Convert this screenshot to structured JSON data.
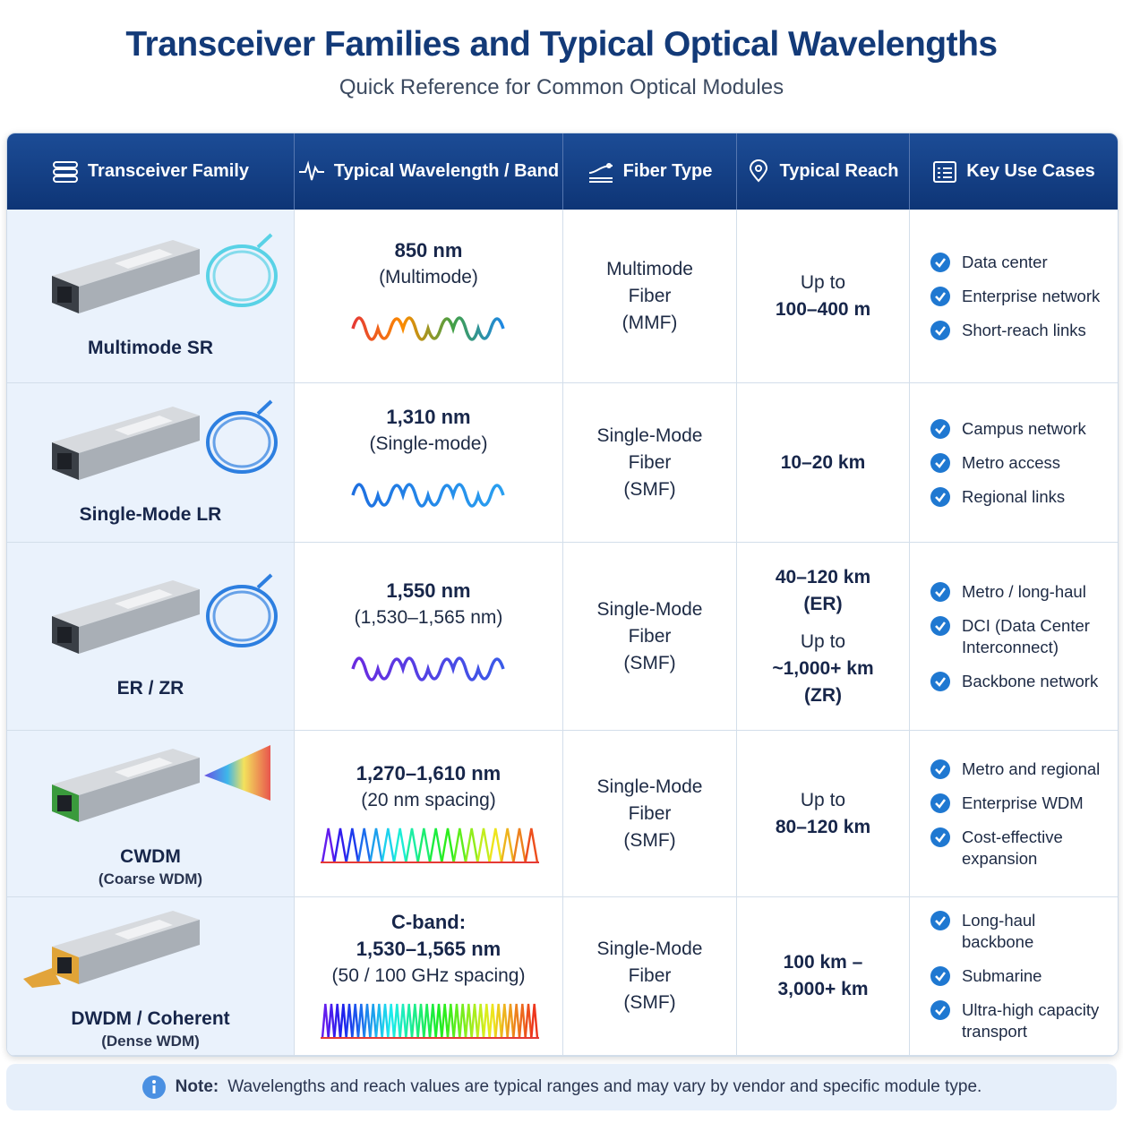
{
  "header": {
    "title": "Transceiver Families and Typical Optical Wavelengths",
    "subtitle": "Quick Reference for Common Optical Modules"
  },
  "table": {
    "columns": [
      "Transceiver Family",
      "Typical Wavelength / Band",
      "Fiber Type",
      "Typical Reach",
      "Key Use Cases"
    ],
    "rows": [
      {
        "family": {
          "name": "Multimode SR"
        },
        "wavelength": {
          "band": "850 nm",
          "detail": "(Multimode)"
        },
        "fiber": [
          "Multimode",
          "Fiber",
          "(MMF)"
        ],
        "reach": [
          {
            "prefix": "Up to",
            "value": "100–400 m"
          }
        ],
        "use_cases": [
          "Data center",
          "Enterprise network",
          "Short-reach links"
        ]
      },
      {
        "family": {
          "name": "Single-Mode LR"
        },
        "wavelength": {
          "band": "1,310 nm",
          "detail": "(Single-mode)"
        },
        "fiber": [
          "Single-Mode",
          "Fiber",
          "(SMF)"
        ],
        "reach": [
          {
            "value": "10–20 km"
          }
        ],
        "use_cases": [
          "Campus network",
          "Metro access",
          "Regional links"
        ]
      },
      {
        "family": {
          "name": "ER / ZR"
        },
        "wavelength": {
          "band": "1,550 nm",
          "detail": "(1,530–1,565 nm)"
        },
        "fiber": [
          "Single-Mode",
          "Fiber",
          "(SMF)"
        ],
        "reach": [
          {
            "value": "40–120 km",
            "note": "(ER)"
          },
          {
            "prefix": "Up to",
            "value": "~1,000+ km",
            "note": "(ZR)"
          }
        ],
        "use_cases": [
          "Metro / long-haul",
          "DCI (Data Center Interconnect)",
          "Backbone network"
        ]
      },
      {
        "family": {
          "name": "CWDM",
          "subtitle": "(Coarse WDM)"
        },
        "wavelength": {
          "band": "1,270–1,610 nm",
          "detail": "(20 nm spacing)"
        },
        "fiber": [
          "Single-Mode",
          "Fiber",
          "(SMF)"
        ],
        "reach": [
          {
            "prefix": "Up to",
            "value": "80–120 km"
          }
        ],
        "use_cases": [
          "Metro and regional",
          "Enterprise WDM",
          "Cost-effective expansion"
        ]
      },
      {
        "family": {
          "name": "DWDM / Coherent",
          "subtitle": "(Dense WDM)"
        },
        "wavelength": {
          "label": "C-band:",
          "band": "1,530–1,565 nm",
          "detail": "(50 / 100 GHz spacing)"
        },
        "fiber": [
          "Single-Mode",
          "Fiber",
          "(SMF)"
        ],
        "reach": [
          {
            "value": "100 km – 3,000+ km"
          }
        ],
        "use_cases": [
          "Long-haul backbone",
          "Submarine",
          "Ultra-high capacity transport"
        ]
      }
    ]
  },
  "note": {
    "label": "Note:",
    "text": "Wavelengths and reach values are typical ranges and may vary by vendor and specific module type."
  }
}
